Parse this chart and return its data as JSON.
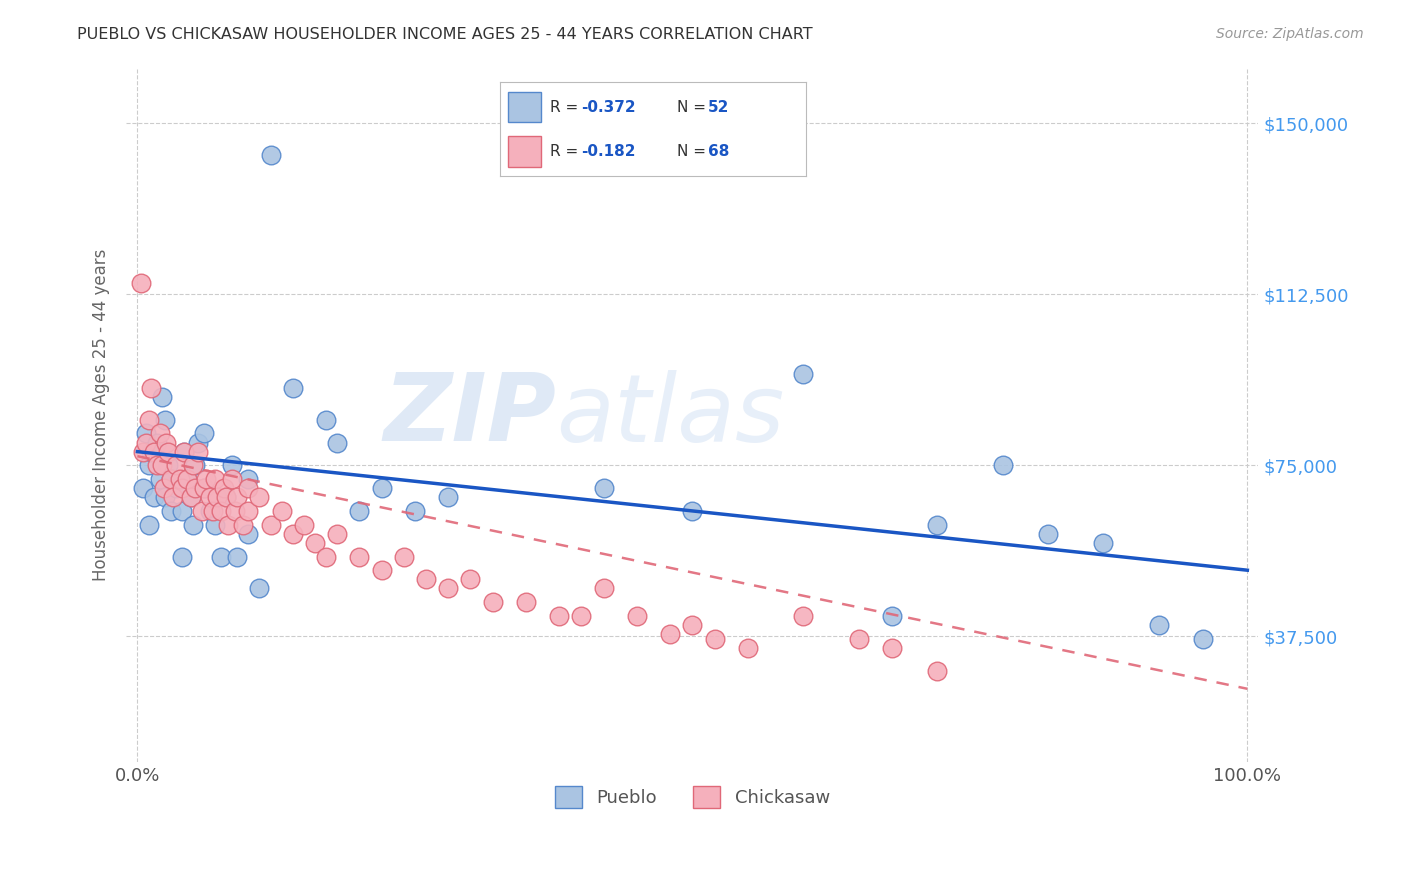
{
  "title": "PUEBLO VS CHICKASAW HOUSEHOLDER INCOME AGES 25 - 44 YEARS CORRELATION CHART",
  "source": "Source: ZipAtlas.com",
  "ylabel": "Householder Income Ages 25 - 44 years",
  "ytick_labels": [
    "$37,500",
    "$75,000",
    "$112,500",
    "$150,000"
  ],
  "ytick_values": [
    37500,
    75000,
    112500,
    150000
  ],
  "ymin": 10000,
  "ymax": 162000,
  "xmin": -0.01,
  "xmax": 1.01,
  "pueblo_color": "#aac4e2",
  "pueblo_edge_color": "#5588cc",
  "chickasaw_color": "#f5b0bc",
  "chickasaw_edge_color": "#e06878",
  "pueblo_line_color": "#1a56c4",
  "chickasaw_line_color": "#e06878",
  "pueblo_R": -0.372,
  "pueblo_N": 52,
  "chickasaw_R": -0.182,
  "chickasaw_N": 68,
  "legend_label_pueblo": "Pueblo",
  "legend_label_chickasaw": "Chickasaw",
  "watermark_zip": "ZIP",
  "watermark_atlas": "atlas",
  "background_color": "#ffffff",
  "grid_color": "#cccccc",
  "title_color": "#333333",
  "axis_label_color": "#666666",
  "ytick_color": "#4499ee",
  "pueblo_x": [
    0.005,
    0.008,
    0.01,
    0.01,
    0.012,
    0.015,
    0.018,
    0.02,
    0.022,
    0.025,
    0.025,
    0.028,
    0.03,
    0.03,
    0.035,
    0.04,
    0.04,
    0.042,
    0.045,
    0.048,
    0.05,
    0.052,
    0.055,
    0.06,
    0.06,
    0.065,
    0.07,
    0.075,
    0.08,
    0.085,
    0.09,
    0.1,
    0.1,
    0.11,
    0.12,
    0.14,
    0.17,
    0.18,
    0.2,
    0.22,
    0.25,
    0.28,
    0.42,
    0.5,
    0.6,
    0.68,
    0.72,
    0.78,
    0.82,
    0.87,
    0.92,
    0.96
  ],
  "pueblo_y": [
    70000,
    82000,
    62000,
    75000,
    78000,
    68000,
    80000,
    72000,
    90000,
    68000,
    85000,
    75000,
    65000,
    72000,
    70000,
    65000,
    55000,
    78000,
    72000,
    68000,
    62000,
    75000,
    80000,
    70000,
    82000,
    65000,
    62000,
    55000,
    68000,
    75000,
    55000,
    72000,
    60000,
    48000,
    143000,
    92000,
    85000,
    80000,
    65000,
    70000,
    65000,
    68000,
    70000,
    65000,
    95000,
    42000,
    62000,
    75000,
    60000,
    58000,
    40000,
    37000
  ],
  "chickasaw_x": [
    0.003,
    0.005,
    0.008,
    0.01,
    0.012,
    0.015,
    0.018,
    0.02,
    0.022,
    0.024,
    0.026,
    0.028,
    0.03,
    0.032,
    0.035,
    0.038,
    0.04,
    0.042,
    0.045,
    0.048,
    0.05,
    0.052,
    0.055,
    0.058,
    0.06,
    0.062,
    0.065,
    0.068,
    0.07,
    0.072,
    0.075,
    0.078,
    0.08,
    0.082,
    0.085,
    0.088,
    0.09,
    0.095,
    0.1,
    0.1,
    0.11,
    0.12,
    0.13,
    0.14,
    0.15,
    0.16,
    0.17,
    0.18,
    0.2,
    0.22,
    0.24,
    0.26,
    0.28,
    0.3,
    0.32,
    0.35,
    0.38,
    0.4,
    0.42,
    0.45,
    0.48,
    0.5,
    0.52,
    0.55,
    0.6,
    0.65,
    0.68,
    0.72
  ],
  "chickasaw_y": [
    115000,
    78000,
    80000,
    85000,
    92000,
    78000,
    75000,
    82000,
    75000,
    70000,
    80000,
    78000,
    72000,
    68000,
    75000,
    72000,
    70000,
    78000,
    72000,
    68000,
    75000,
    70000,
    78000,
    65000,
    70000,
    72000,
    68000,
    65000,
    72000,
    68000,
    65000,
    70000,
    68000,
    62000,
    72000,
    65000,
    68000,
    62000,
    65000,
    70000,
    68000,
    62000,
    65000,
    60000,
    62000,
    58000,
    55000,
    60000,
    55000,
    52000,
    55000,
    50000,
    48000,
    50000,
    45000,
    45000,
    42000,
    42000,
    48000,
    42000,
    38000,
    40000,
    37000,
    35000,
    42000,
    37000,
    35000,
    30000
  ]
}
